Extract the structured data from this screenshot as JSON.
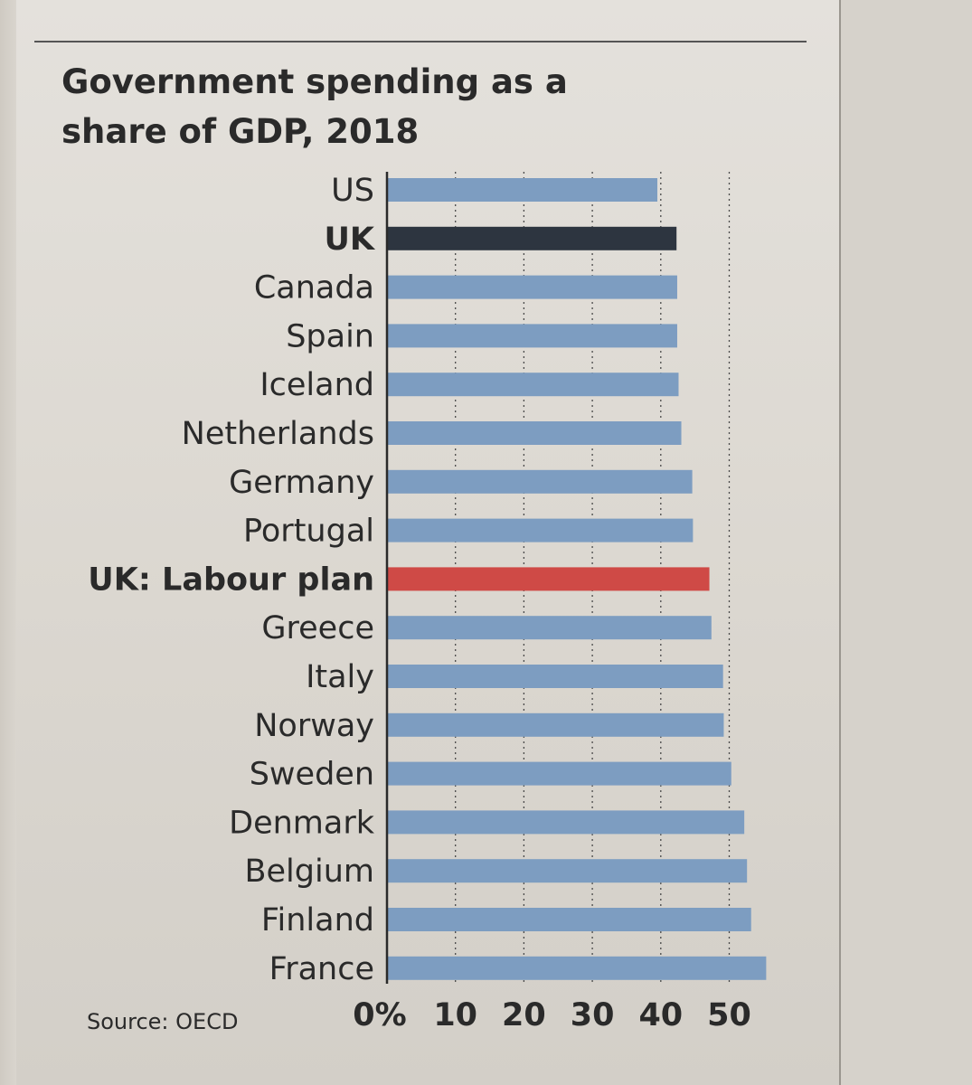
{
  "chart_data": {
    "type": "bar",
    "orientation": "horizontal",
    "title_lines": [
      "Government spending as a",
      "share of GDP, 2018"
    ],
    "categories": [
      "US",
      "UK",
      "Canada",
      "Spain",
      "Iceland",
      "Netherlands",
      "Germany",
      "Portugal",
      "UK: Labour plan",
      "Greece",
      "Italy",
      "Norway",
      "Sweden",
      "Denmark",
      "Belgium",
      "Finland",
      "France"
    ],
    "values": [
      39.5,
      42.3,
      42.4,
      42.4,
      42.6,
      43.0,
      44.6,
      44.7,
      47.1,
      47.4,
      49.1,
      49.2,
      50.3,
      52.2,
      52.6,
      53.2,
      55.4
    ],
    "bold_categories": [
      "UK",
      "UK: Labour plan"
    ],
    "bar_colors": [
      "#7d9dc1",
      "#2d3540",
      "#7d9dc1",
      "#7d9dc1",
      "#7d9dc1",
      "#7d9dc1",
      "#7d9dc1",
      "#7d9dc1",
      "#cf4a46",
      "#7d9dc1",
      "#7d9dc1",
      "#7d9dc1",
      "#7d9dc1",
      "#7d9dc1",
      "#7d9dc1",
      "#7d9dc1",
      "#7d9dc1"
    ],
    "xlim": [
      0,
      56
    ],
    "xticks": [
      0,
      10,
      20,
      30,
      40,
      50
    ],
    "xtick_labels": [
      "0%",
      "10",
      "20",
      "30",
      "40",
      "50"
    ],
    "grid": "vertical dotted",
    "source": "Source: OECD",
    "colors": {
      "default_bar": "#7d9dc1",
      "uk_bar": "#2d3540",
      "labour_bar": "#cf4a46",
      "text": "#2a2a2a",
      "gridline": "#4a4a4a"
    }
  }
}
